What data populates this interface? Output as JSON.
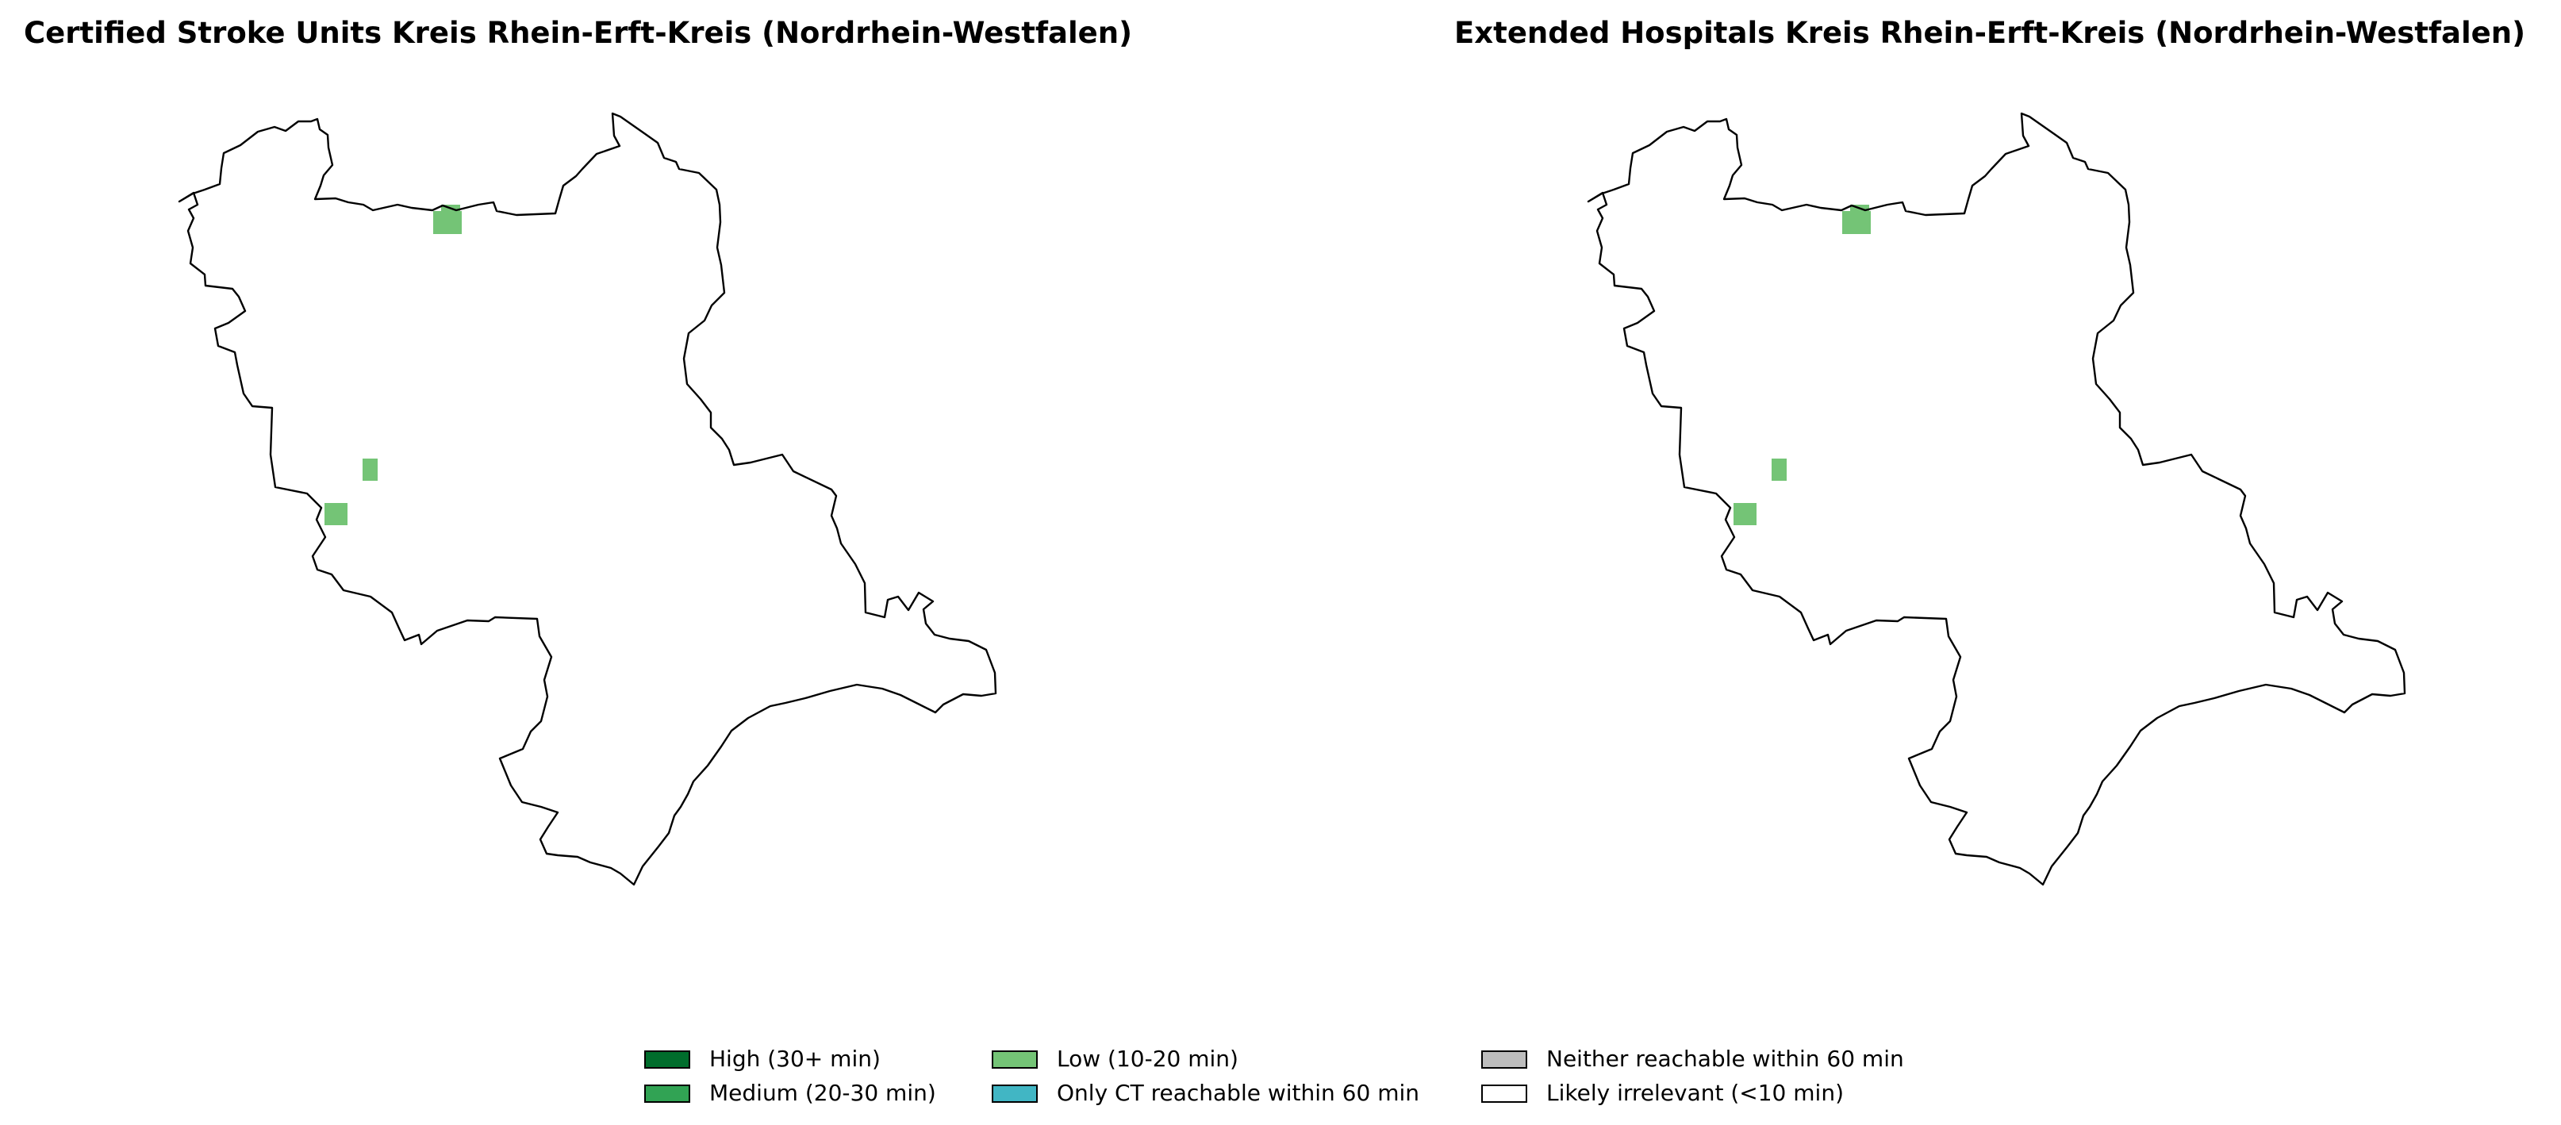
{
  "panels": [
    {
      "title": "Certified Stroke Units Kreis Rhein-Erft-Kreis (Nordrhein-Westfalen)",
      "cells": [
        {
          "category": "low"
        },
        {
          "category": "low"
        },
        {
          "category": "low"
        },
        {
          "category": "low"
        }
      ]
    },
    {
      "title": "Extended Hospitals Kreis Rhein-Erft-Kreis (Nordrhein-Westfalen)",
      "cells": [
        {
          "category": "low"
        },
        {
          "category": "low"
        },
        {
          "category": "low"
        },
        {
          "category": "low"
        }
      ]
    }
  ],
  "legend": {
    "items": [
      {
        "key": "high",
        "label": "High (30+ min)",
        "color": "#006d2c"
      },
      {
        "key": "medium",
        "label": "Medium (20-30 min)",
        "color": "#31a354"
      },
      {
        "key": "low",
        "label": "Low (10-20 min)",
        "color": "#74c476"
      },
      {
        "key": "ct",
        "label": "Only CT reachable within 60 min",
        "color": "#41b6c4"
      },
      {
        "key": "neither",
        "label": "Neither reachable within 60 min",
        "color": "#bdbdbd"
      },
      {
        "key": "irrelevant",
        "label": "Likely irrelevant (<10 min)",
        "color": "#ffffff"
      }
    ]
  },
  "colors": {
    "boundary": "#000000",
    "background": "#ffffff"
  }
}
